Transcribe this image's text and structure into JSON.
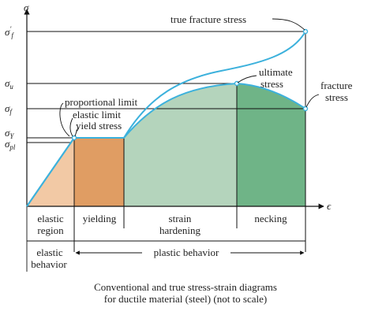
{
  "axes": {
    "y_symbol": "σ",
    "x_symbol": "ϵ",
    "y_ticks": [
      {
        "base": "σ",
        "prime": "′",
        "sub": "f"
      },
      {
        "base": "σ",
        "prime": "",
        "sub": "u"
      },
      {
        "base": "σ",
        "prime": "",
        "sub": "f"
      },
      {
        "base": "σ",
        "prime": "",
        "sub": "Y"
      },
      {
        "base": "σ",
        "prime": "",
        "sub": "pl"
      }
    ]
  },
  "annotations": {
    "true_fracture_stress": "true fracture stress",
    "ultimate_line1": "ultimate",
    "ultimate_line2": "stress",
    "fracture_line1": "fracture",
    "fracture_line2": "stress",
    "proportional_limit": "proportional limit",
    "elastic_limit": "elastic limit",
    "yield_stress": "yield stress"
  },
  "regions": [
    {
      "line1": "elastic",
      "line2": "region",
      "color": "#f2c9a5"
    },
    {
      "line1": "yielding",
      "line2": "",
      "color": "#e09d63"
    },
    {
      "line1": "strain",
      "line2": "hardening",
      "color": "#b4d4bc"
    },
    {
      "line1": "necking",
      "line2": "",
      "color": "#6fb487"
    }
  ],
  "behavior": {
    "elastic_line1": "elastic",
    "elastic_line2": "behavior",
    "plastic": "plastic behavior"
  },
  "caption": {
    "line1": "Conventional and true stress-strain diagrams",
    "line2": "for ductile material (steel) (not to scale)"
  },
  "colors": {
    "curve": "#3cb1dc",
    "grid": "#111111"
  }
}
